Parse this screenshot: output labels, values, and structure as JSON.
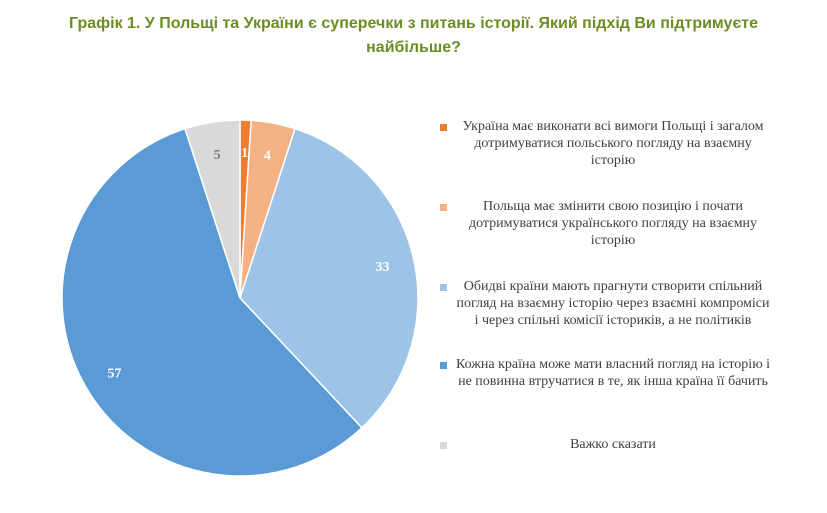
{
  "title": "Графік 1. У Польщі та України є суперечки з питань історії. Який підхід Ви підтримуєте найбільше?",
  "chart_data": {
    "type": "pie",
    "title": "Графік 1. У Польщі та України є суперечки з питань історії. Який підхід Ви підтримуєте найбільше?",
    "legend_position": "right",
    "start_angle_deg": 0,
    "direction": "clockwise",
    "slices": [
      {
        "label": "Україна має виконати всі вимоги Польщі і загалом дотримуватися польського погляду на взаємну історію",
        "value": 1,
        "color": "#ed7d31"
      },
      {
        "label": "Польща має змінити свою позицію і почати дотримуватися українського погляду на взаємну історію",
        "value": 4,
        "color": "#f4b183"
      },
      {
        "label": "Обидві країни мають прагнути створити спільний погляд на взаємну історію через взаємні компроміси і через спільні комісії істориків, а не політиків",
        "value": 33,
        "color": "#9dc3e6"
      },
      {
        "label": "Кожна країна може мати власний погляд на історію і не повинна втручатися в те, як інша країна її бачить",
        "value": 57,
        "color": "#5b9bd5"
      },
      {
        "label": "Важко сказати",
        "value": 5,
        "color": "#d9d9d9"
      }
    ],
    "data_label_colors": [
      "#ffffff",
      "#ffffff",
      "#ffffff",
      "#ffffff",
      "#7f7f7f"
    ]
  }
}
